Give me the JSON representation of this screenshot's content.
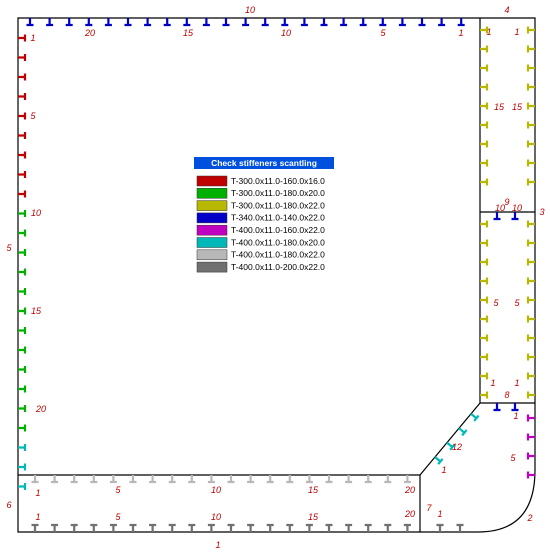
{
  "legend": {
    "title": "Check stiffeners scantling",
    "items": [
      {
        "label": "T-300.0x11.0-160.0x16.0",
        "color": "#c00000"
      },
      {
        "label": "T-300.0x11.0-180.0x20.0",
        "color": "#00b000"
      },
      {
        "label": "T-300.0x11.0-180.0x22.0",
        "color": "#b8b800"
      },
      {
        "label": "T-340.0x11.0-140.0x22.0",
        "color": "#0000c8"
      },
      {
        "label": "T-400.0x11.0-160.0x22.0",
        "color": "#c000c0"
      },
      {
        "label": "T-400.0x11.0-180.0x20.0",
        "color": "#00b8b8"
      },
      {
        "label": "T-400.0x11.0-180.0x22.0",
        "color": "#b8b8b8"
      },
      {
        "label": "T-400.0x11.0-200.0x22.0",
        "color": "#707070"
      }
    ]
  },
  "labels": [
    "10",
    "4",
    "1",
    "20",
    "15",
    "10",
    "5",
    "1",
    "1",
    "1",
    "5",
    "10",
    "5",
    "15",
    "20",
    "15",
    "15",
    "10",
    "9",
    "10",
    "3",
    "5",
    "5",
    "1",
    "1",
    "8",
    "1",
    "5",
    "12",
    "1",
    "6",
    "1",
    "5",
    "10",
    "15",
    "20",
    "1",
    "5",
    "10",
    "15",
    "20",
    "7",
    "1",
    "2",
    "1"
  ]
}
